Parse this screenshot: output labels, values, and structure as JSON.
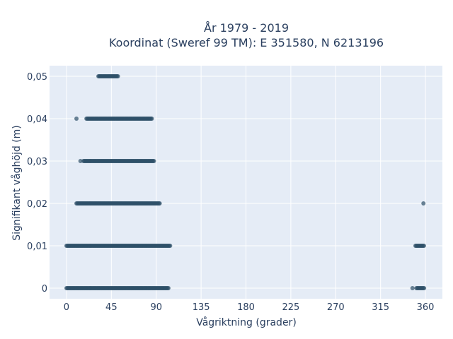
{
  "chart_data": {
    "type": "scatter",
    "title_line1": "År 1979 - 2019",
    "title_line2": "Koordinat (Sweref 99 TM): E 351580, N 6213196",
    "xlabel": "Vågriktning (grader)",
    "ylabel": "Signifikant våghöjd (m)",
    "xlim": [
      -17,
      377
    ],
    "ylim": [
      -0.0025,
      0.0525
    ],
    "x_ticks": [
      0,
      45,
      90,
      135,
      180,
      225,
      270,
      315,
      360
    ],
    "x_tick_labels": [
      "0",
      "45",
      "90",
      "135",
      "180",
      "225",
      "270",
      "315",
      "360"
    ],
    "y_ticks": [
      0,
      0.01,
      0.02,
      0.03,
      0.04,
      0.05
    ],
    "y_tick_labels": [
      "0",
      "0,01",
      "0,02",
      "0,03",
      "0,04",
      "0,05"
    ],
    "grid": true,
    "point_color": "#2e5068",
    "plot_background": "#e5ecf6",
    "series": [
      {
        "clusters": [
          {
            "y": 0,
            "x_start": 0,
            "x_end": 103
          },
          {
            "y": 0,
            "x_start": 351,
            "x_end": 359
          },
          {
            "y": 0.01,
            "x_start": 0,
            "x_end": 104
          },
          {
            "y": 0.01,
            "x_start": 350,
            "x_end": 359
          },
          {
            "y": 0.02,
            "x_start": 10,
            "x_end": 94
          },
          {
            "y": 0.03,
            "x_start": 17,
            "x_end": 88
          },
          {
            "y": 0.04,
            "x_start": 20,
            "x_end": 86
          },
          {
            "y": 0.05,
            "x_start": 32,
            "x_end": 52
          }
        ],
        "isolated_points": [
          {
            "x": 10,
            "y": 0.04
          },
          {
            "x": 14,
            "y": 0.03
          },
          {
            "x": 347,
            "y": 0
          },
          {
            "x": 358,
            "y": 0.02
          }
        ]
      }
    ]
  }
}
